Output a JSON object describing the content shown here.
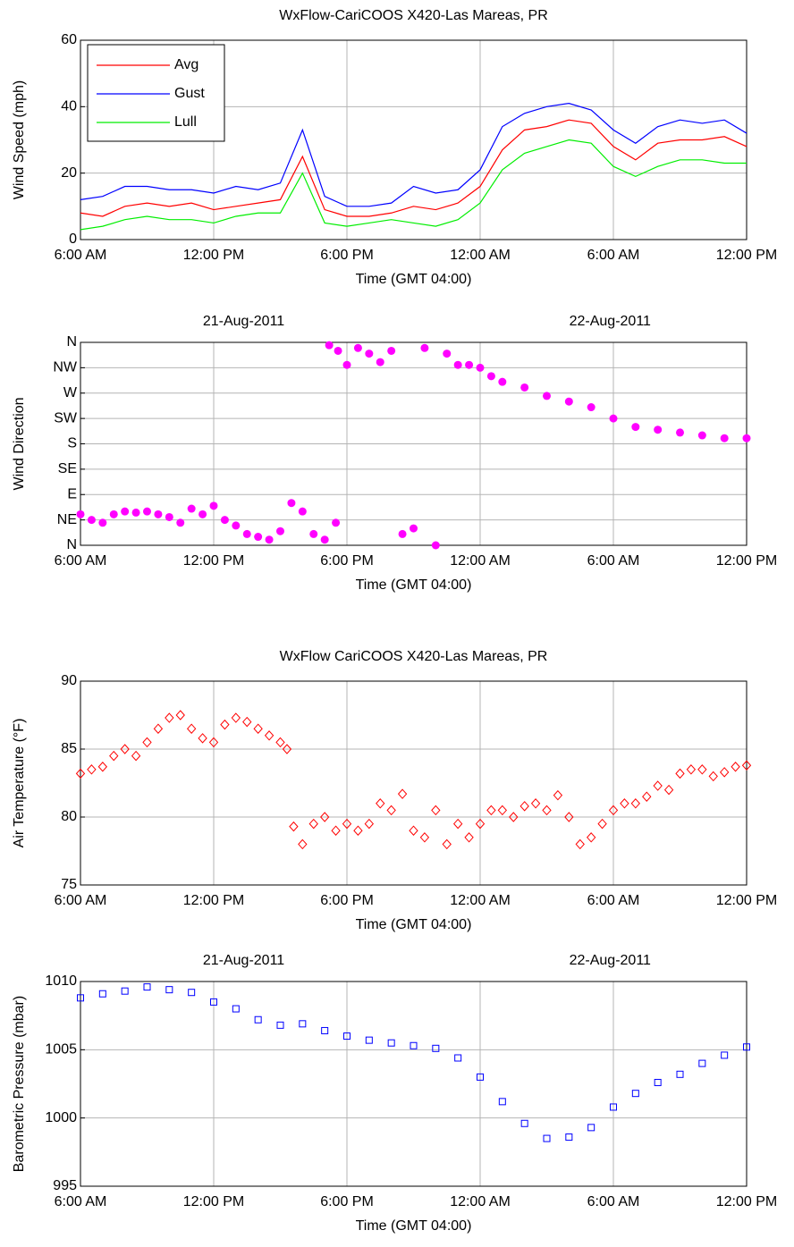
{
  "chart_data": [
    {
      "type": "line",
      "title": "WxFlow-CariCOOS X420-Las Mareas, PR",
      "xlabel": "Time (GMT 04:00)",
      "ylabel": "Wind Speed (mph)",
      "x": [
        6,
        7,
        8,
        9,
        10,
        11,
        12,
        13,
        14,
        15,
        16,
        17,
        18,
        19,
        20,
        21,
        22,
        23,
        24,
        25,
        26,
        27,
        28,
        29,
        30,
        31,
        32,
        33,
        34,
        35,
        36
      ],
      "series": [
        {
          "name": "Avg",
          "color": "#ff0000",
          "values": [
            8,
            7,
            10,
            11,
            10,
            11,
            9,
            10,
            11,
            12,
            25,
            9,
            7,
            7,
            8,
            10,
            9,
            11,
            16,
            27,
            33,
            34,
            36,
            35,
            28,
            24,
            29,
            30,
            30,
            31,
            28
          ]
        },
        {
          "name": "Gust",
          "color": "#0000ff",
          "values": [
            12,
            13,
            16,
            16,
            15,
            15,
            14,
            16,
            15,
            17,
            33,
            13,
            10,
            10,
            11,
            16,
            14,
            15,
            21,
            34,
            38,
            40,
            41,
            39,
            33,
            29,
            34,
            36,
            35,
            36,
            32
          ]
        },
        {
          "name": "Lull",
          "color": "#00ee00",
          "values": [
            3,
            4,
            6,
            7,
            6,
            6,
            5,
            7,
            8,
            8,
            20,
            5,
            4,
            5,
            6,
            5,
            4,
            6,
            11,
            21,
            26,
            28,
            30,
            29,
            22,
            19,
            22,
            24,
            24,
            23,
            23
          ]
        }
      ],
      "xlim": [
        6,
        36
      ],
      "xticks": [
        {
          "value": 6,
          "label": "6:00 AM"
        },
        {
          "value": 12,
          "label": "12:00 PM"
        },
        {
          "value": 18,
          "label": "6:00 PM"
        },
        {
          "value": 24,
          "label": "12:00 AM"
        },
        {
          "value": 30,
          "label": "6:00 AM"
        },
        {
          "value": 36,
          "label": "12:00 PM"
        }
      ],
      "ylim": [
        0,
        60
      ],
      "yticks": [
        0,
        20,
        40,
        60
      ],
      "grid": true,
      "legend": "upper-left"
    },
    {
      "type": "scatter",
      "xlabel": "Time (GMT 04:00)",
      "ylabel": "Wind Direction",
      "date_labels": [
        "21-Aug-2011",
        "22-Aug-2011"
      ],
      "marker": "circle",
      "color": "#ff00ff",
      "x": [
        6,
        6.5,
        7,
        7.5,
        8,
        8.5,
        9,
        9.5,
        10,
        10.5,
        11,
        11.5,
        12,
        12.5,
        13,
        13.5,
        14,
        14.5,
        15,
        15.5,
        16,
        16.5,
        17,
        17.5,
        17.2,
        17.6,
        18,
        18.5,
        19,
        19.5,
        20,
        20.5,
        21,
        21.5,
        22,
        22.5,
        23,
        23.5,
        24,
        24.5,
        25,
        26,
        27,
        28,
        29,
        30,
        31,
        32,
        33,
        34,
        35,
        36
      ],
      "values": [
        55,
        45,
        40,
        55,
        60,
        58,
        60,
        55,
        50,
        40,
        65,
        55,
        70,
        45,
        35,
        20,
        15,
        10,
        25,
        75,
        60,
        20,
        10,
        40,
        355,
        345,
        320,
        350,
        340,
        325,
        345,
        20,
        30,
        350,
        0,
        340,
        320,
        320,
        315,
        300,
        290,
        280,
        265,
        255,
        245,
        225,
        210,
        205,
        200,
        195,
        190,
        190
      ],
      "xlim": [
        6,
        36
      ],
      "xticks": [
        {
          "value": 6,
          "label": "6:00 AM"
        },
        {
          "value": 12,
          "label": "12:00 PM"
        },
        {
          "value": 18,
          "label": "6:00 PM"
        },
        {
          "value": 24,
          "label": "12:00 AM"
        },
        {
          "value": 30,
          "label": "6:00 AM"
        },
        {
          "value": 36,
          "label": "12:00 PM"
        }
      ],
      "ylim": [
        0,
        360
      ],
      "yticks": [
        {
          "value": 0,
          "label": "N"
        },
        {
          "value": 45,
          "label": "NE"
        },
        {
          "value": 90,
          "label": "E"
        },
        {
          "value": 135,
          "label": "SE"
        },
        {
          "value": 180,
          "label": "S"
        },
        {
          "value": 225,
          "label": "SW"
        },
        {
          "value": 270,
          "label": "W"
        },
        {
          "value": 315,
          "label": "NW"
        },
        {
          "value": 360,
          "label": "N"
        }
      ],
      "grid": true
    },
    {
      "type": "scatter",
      "title": "WxFlow CariCOOS  X420-Las Mareas, PR",
      "xlabel": "Time (GMT 04:00)",
      "ylabel": "Air Temperature (°F)",
      "marker": "diamond",
      "color": "#ff0000",
      "x": [
        6,
        6.5,
        7,
        7.5,
        8,
        8.5,
        9,
        9.5,
        10,
        10.5,
        11,
        11.5,
        12,
        12.5,
        13,
        13.5,
        14,
        14.5,
        15,
        15.3,
        15.6,
        16,
        16.5,
        17,
        17.5,
        18,
        18.5,
        19,
        19.5,
        20,
        20.5,
        21,
        21.5,
        22,
        22.5,
        23,
        23.5,
        24,
        24.5,
        25,
        25.5,
        26,
        26.5,
        27,
        27.5,
        28,
        28.5,
        29,
        29.5,
        30,
        30.5,
        31,
        31.5,
        32,
        32.5,
        33,
        33.5,
        34,
        34.5,
        35,
        35.5,
        36
      ],
      "values": [
        83.2,
        83.5,
        83.7,
        84.5,
        85,
        84.5,
        85.5,
        86.5,
        87.3,
        87.5,
        86.5,
        85.8,
        85.5,
        86.8,
        87.3,
        87,
        86.5,
        86,
        85.5,
        85,
        79.3,
        78,
        79.5,
        80,
        79,
        79.5,
        79,
        79.5,
        81,
        80.5,
        81.7,
        79,
        78.5,
        80.5,
        78,
        79.5,
        78.5,
        79.5,
        80.5,
        80.5,
        80,
        80.8,
        81,
        80.5,
        81.6,
        80,
        78,
        78.5,
        79.5,
        80.5,
        81,
        81,
        81.5,
        82.3,
        82,
        83.2,
        83.5,
        83.5,
        83,
        83.3,
        83.7,
        83.8
      ],
      "xlim": [
        6,
        36
      ],
      "xticks": [
        {
          "value": 6,
          "label": "6:00 AM"
        },
        {
          "value": 12,
          "label": "12:00 PM"
        },
        {
          "value": 18,
          "label": "6:00 PM"
        },
        {
          "value": 24,
          "label": "12:00 AM"
        },
        {
          "value": 30,
          "label": "6:00 AM"
        },
        {
          "value": 36,
          "label": "12:00 PM"
        }
      ],
      "ylim": [
        75,
        90
      ],
      "yticks": [
        75,
        80,
        85,
        90
      ],
      "grid": true
    },
    {
      "type": "scatter",
      "xlabel": "Time (GMT 04:00)",
      "ylabel": "Barometric Pressure (mbar)",
      "date_labels": [
        "21-Aug-2011",
        "22-Aug-2011"
      ],
      "marker": "square",
      "color": "#0000ff",
      "x": [
        6,
        7,
        8,
        9,
        10,
        11,
        12,
        13,
        14,
        15,
        16,
        17,
        18,
        19,
        20,
        21,
        22,
        23,
        24,
        25,
        26,
        27,
        28,
        29,
        30,
        31,
        32,
        33,
        34,
        35,
        36
      ],
      "values": [
        1008.8,
        1009.1,
        1009.3,
        1009.6,
        1009.4,
        1009.2,
        1008.5,
        1008.0,
        1007.2,
        1006.8,
        1006.9,
        1006.4,
        1006,
        1005.7,
        1005.5,
        1005.3,
        1005.1,
        1004.4,
        1003.0,
        1001.2,
        999.6,
        998.5,
        998.6,
        999.3,
        1000.8,
        1001.8,
        1002.6,
        1003.2,
        1004.0,
        1004.6,
        1005.2
      ],
      "xlim": [
        6,
        36
      ],
      "xticks": [
        {
          "value": 6,
          "label": "6:00 AM"
        },
        {
          "value": 12,
          "label": "12:00 PM"
        },
        {
          "value": 18,
          "label": "6:00 PM"
        },
        {
          "value": 24,
          "label": "12:00 AM"
        },
        {
          "value": 30,
          "label": "6:00 AM"
        },
        {
          "value": 36,
          "label": "12:00 PM"
        }
      ],
      "ylim": [
        995,
        1010
      ],
      "yticks": [
        995,
        1000,
        1005,
        1010
      ],
      "grid": true
    }
  ]
}
